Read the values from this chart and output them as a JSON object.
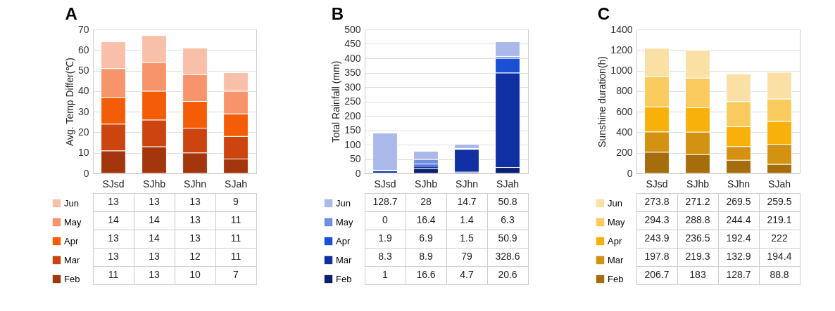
{
  "chart_data": [
    {
      "type": "bar",
      "title": "A",
      "ylabel": "Avg. Temp Differ(℃)",
      "categories": [
        "SJsd",
        "SJhb",
        "SJhn",
        "SJah"
      ],
      "stacked": true,
      "ylim": [
        0,
        70
      ],
      "yticks": [
        0,
        10,
        20,
        30,
        40,
        50,
        60,
        70
      ],
      "grid": "y",
      "legend": "bottom left",
      "data_labels": true,
      "series": [
        {
          "name": "Feb",
          "color": "#a3360c",
          "values": [
            11,
            13,
            10,
            7
          ]
        },
        {
          "name": "Mar",
          "color": "#cc4510",
          "values": [
            13,
            13,
            12,
            11
          ]
        },
        {
          "name": "Apr",
          "color": "#f45d08",
          "values": [
            13,
            14,
            13,
            11
          ]
        },
        {
          "name": "May",
          "color": "#f7946c",
          "values": [
            14,
            14,
            13,
            11
          ]
        },
        {
          "name": "Jun",
          "color": "#f8c0a8",
          "values": [
            13,
            13,
            13,
            9
          ]
        }
      ]
    },
    {
      "type": "bar",
      "title": "B",
      "ylabel": "Total Rainfall (mm)",
      "categories": [
        "SJsd",
        "SJhb",
        "SJhn",
        "SJah"
      ],
      "stacked": true,
      "ylim": [
        0,
        500
      ],
      "yticks": [
        0,
        50,
        100,
        150,
        200,
        250,
        300,
        350,
        400,
        450,
        500
      ],
      "grid": "y",
      "legend": "bottom left",
      "data_labels": true,
      "series": [
        {
          "name": "Feb",
          "color": "#0b1f6e",
          "values": [
            1,
            16.6,
            4.7,
            20.6
          ]
        },
        {
          "name": "Mar",
          "color": "#0f2fa3",
          "values": [
            8.3,
            8.9,
            79,
            328.6
          ]
        },
        {
          "name": "Apr",
          "color": "#1b50d6",
          "values": [
            1.9,
            6.9,
            1.5,
            50.9
          ]
        },
        {
          "name": "May",
          "color": "#6f8ee0",
          "values": [
            0,
            16.4,
            1.4,
            6.3
          ]
        },
        {
          "name": "Jun",
          "color": "#aab8ea",
          "values": [
            128.7,
            28,
            14.7,
            50.8
          ]
        }
      ]
    },
    {
      "type": "bar",
      "title": "C",
      "ylabel": "Sunshine duration(h)",
      "categories": [
        "SJsd",
        "SJhb",
        "SJhn",
        "SJah"
      ],
      "stacked": true,
      "ylim": [
        0,
        1400
      ],
      "yticks": [
        0,
        200,
        400,
        600,
        800,
        1000,
        1200,
        1400
      ],
      "grid": "y",
      "legend": "bottom left",
      "data_labels": true,
      "series": [
        {
          "name": "Feb",
          "color": "#a66d0c",
          "values": [
            206.7,
            183,
            128.7,
            88.8
          ]
        },
        {
          "name": "Mar",
          "color": "#d39212",
          "values": [
            197.8,
            219.3,
            132.9,
            194.4
          ]
        },
        {
          "name": "Apr",
          "color": "#f7b10a",
          "values": [
            243.9,
            236.5,
            192.4,
            222
          ]
        },
        {
          "name": "May",
          "color": "#f9cb5f",
          "values": [
            294.3,
            288.8,
            244.4,
            219.1
          ]
        },
        {
          "name": "Jun",
          "color": "#fbe0a6",
          "values": [
            273.8,
            271.2,
            269.5,
            259.5
          ]
        }
      ]
    }
  ]
}
